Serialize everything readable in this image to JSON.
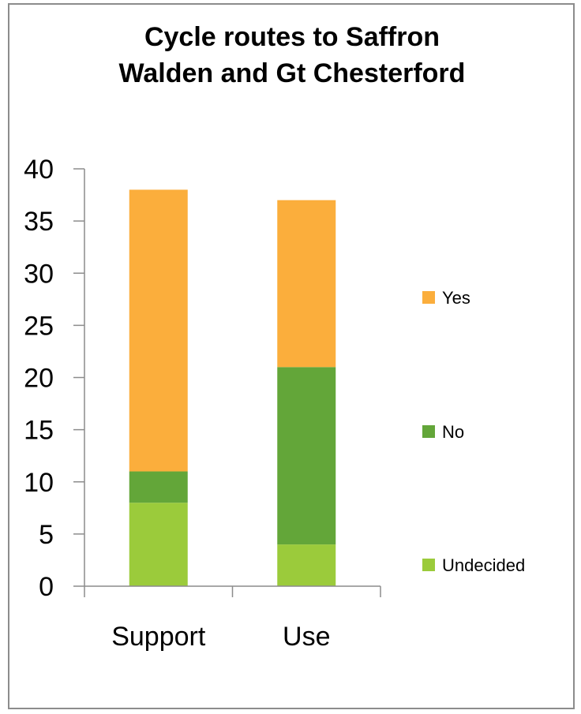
{
  "chart_data": {
    "type": "bar",
    "stacked": true,
    "title_lines": [
      "Cycle routes to Saffron",
      "Walden and Gt Chesterford"
    ],
    "categories": [
      "Support",
      "Use"
    ],
    "series": [
      {
        "name": "Undecided",
        "color": "#9BCB3B",
        "values": [
          8,
          4
        ]
      },
      {
        "name": "No",
        "color": "#63A639",
        "values": [
          3,
          17
        ]
      },
      {
        "name": "Yes",
        "color": "#FBAE3C",
        "values": [
          27,
          16
        ]
      }
    ],
    "ylim": [
      0,
      40
    ],
    "yticks": [
      0,
      5,
      10,
      15,
      20,
      25,
      30,
      35,
      40
    ],
    "legend": "right",
    "legend_order": [
      "Yes",
      "No",
      "Undecided"
    ],
    "grid": false,
    "axis_color": "#8c8c8c"
  }
}
